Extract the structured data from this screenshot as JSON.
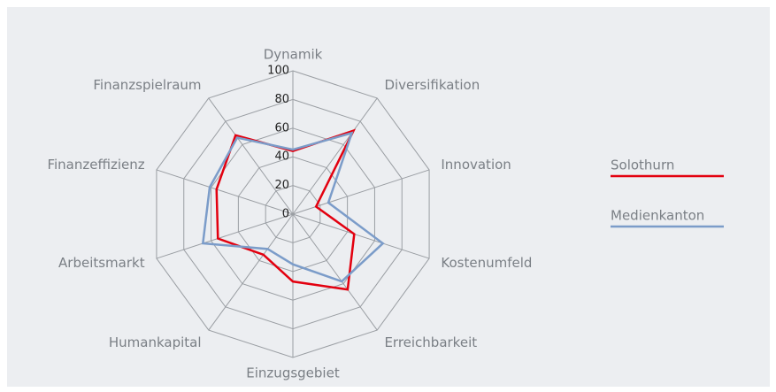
{
  "chart_data": {
    "type": "radar",
    "categories": [
      "Dynamik",
      "Diversifikation",
      "Innovation",
      "Kostenumfeld",
      "Erreichbarkeit",
      "Einzugsgebiet",
      "Humankapital",
      "Arbeitsmarkt",
      "Finanzeffizienz",
      "Finanzspielraum"
    ],
    "series": [
      {
        "name": "Solothurn",
        "color": "#e3000f",
        "values": [
          44,
          72,
          17,
          45,
          65,
          47,
          35,
          55,
          56,
          68
        ]
      },
      {
        "name": "Medienkanton",
        "color": "#7b9cc9",
        "values": [
          45,
          70,
          26,
          66,
          58,
          35,
          30,
          66,
          61,
          66
        ]
      }
    ],
    "rlim": [
      0,
      100
    ],
    "rticks": [
      0,
      20,
      40,
      60,
      80,
      100
    ],
    "grid": true,
    "legend": "right"
  }
}
